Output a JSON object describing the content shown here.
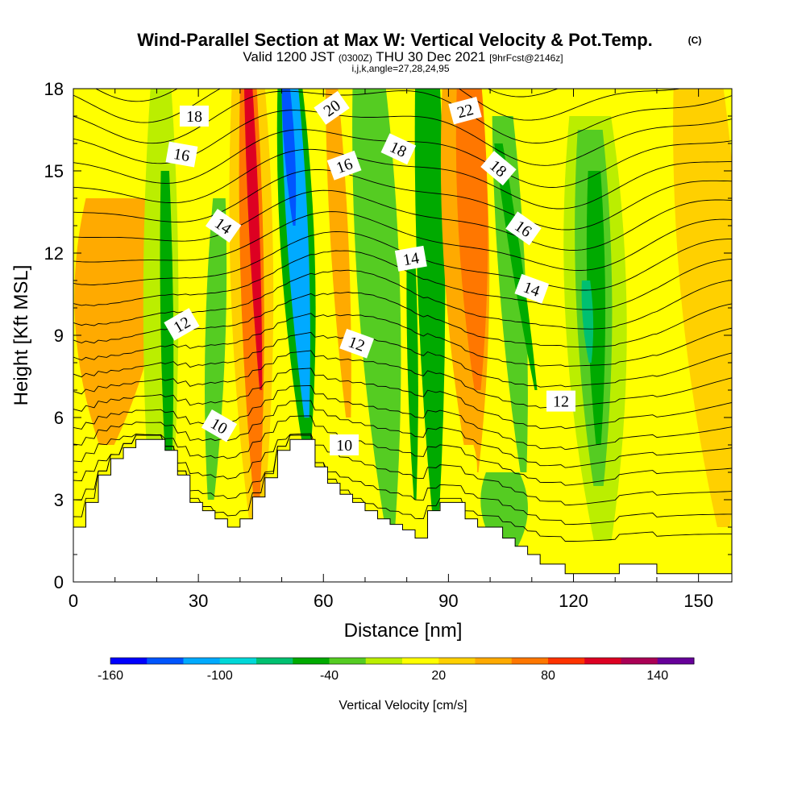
{
  "chart_data": {
    "type": "heatmap",
    "title": "Wind-Parallel Section at Max W: Vertical Velocity & Pot.Temp.",
    "title_mark": "(C)",
    "subtitle_parts": [
      "Valid 1200 JST",
      "(0300Z)",
      "THU 30 Dec 2021",
      "[9hrFcst@2146z]"
    ],
    "subtitle2": "i,j,k,angle=27,28,24,95",
    "xlabel": "Distance [nm]",
    "ylabel": "Height [Kft MSL]",
    "xlim": [
      0,
      158
    ],
    "ylim": [
      0,
      18
    ],
    "xticks": [
      0,
      30,
      60,
      90,
      120,
      150
    ],
    "yticks": [
      0,
      3,
      6,
      9,
      12,
      15,
      18
    ],
    "colorbar": {
      "label": "Vertical Velocity [cm/s]",
      "ticks": [
        -160,
        -100,
        -40,
        20,
        80,
        140
      ],
      "bounds": [
        -160,
        160
      ],
      "colors": [
        "#0000ff",
        "#0055ff",
        "#00aaff",
        "#00d8d8",
        "#00c070",
        "#00aa00",
        "#55cc22",
        "#bbee00",
        "#ffff00",
        "#ffd000",
        "#ffaa00",
        "#ff7700",
        "#ff3300",
        "#dd0022",
        "#aa0055",
        "#660099"
      ]
    },
    "velocity_bands": [
      {
        "x0": 8,
        "w0": 12,
        "x1": 12,
        "w1": 18,
        "y0": 5,
        "y1": 14,
        "value": 50
      },
      {
        "x0": 21,
        "w0": 9,
        "x1": 21,
        "w1": 5,
        "y0": 0,
        "y1": 18,
        "value": -20
      },
      {
        "x0": 23,
        "w0": 3,
        "x1": 22,
        "w1": 2,
        "y0": 3,
        "y1": 15,
        "value": -45
      },
      {
        "x0": 33,
        "w0": 5,
        "x1": 35,
        "w1": 3,
        "y0": 3,
        "y1": 14,
        "value": -35
      },
      {
        "x0": 44,
        "w0": 8,
        "x1": 42,
        "w1": 8,
        "y0": 1.5,
        "y1": 18,
        "value": 35
      },
      {
        "x0": 44,
        "w0": 5,
        "x1": 42,
        "w1": 4,
        "y0": 3,
        "y1": 18,
        "value": 75
      },
      {
        "x0": 45,
        "w0": 2,
        "x1": 42,
        "w1": 2,
        "y0": 7,
        "y1": 18,
        "value": 100
      },
      {
        "x0": 56,
        "w0": 7,
        "x1": 52,
        "w1": 6,
        "y0": 5,
        "y1": 18,
        "value": -60
      },
      {
        "x0": 56,
        "w0": 4,
        "x1": 52,
        "w1": 4,
        "y0": 6,
        "y1": 18,
        "value": -110
      },
      {
        "x0": 53,
        "w0": 2,
        "x1": 51,
        "w1": 2,
        "y0": 13,
        "y1": 18,
        "value": -140
      },
      {
        "x0": 66,
        "w0": 4,
        "x1": 62,
        "w1": 3,
        "y0": 6,
        "y1": 18,
        "value": 40
      },
      {
        "x0": 76,
        "w0": 8,
        "x1": 71,
        "w1": 8,
        "y0": 2,
        "y1": 18,
        "value": -35
      },
      {
        "x0": 87,
        "w0": 4,
        "x1": 85,
        "w1": 6,
        "y0": 2,
        "y1": 18,
        "value": -50
      },
      {
        "x0": 82,
        "w0": 2,
        "x1": 81,
        "w1": 2,
        "y0": 3,
        "y1": 12,
        "value": -45
      },
      {
        "x0": 96,
        "w0": 8,
        "x1": 93,
        "w1": 9,
        "y0": 4,
        "y1": 18,
        "value": 45
      },
      {
        "x0": 97,
        "w0": 5,
        "x1": 95,
        "w1": 6,
        "y0": 7,
        "y1": 18,
        "value": 75
      },
      {
        "x0": 108,
        "w0": 5,
        "x1": 103,
        "w1": 5,
        "y0": 4,
        "y1": 17,
        "value": -35
      },
      {
        "x0": 111,
        "w0": 2,
        "x1": 102,
        "w1": 2,
        "y0": 7,
        "y1": 16,
        "value": -45
      },
      {
        "x0": 127,
        "w0": 14,
        "x1": 124,
        "w1": 10,
        "y0": 1.5,
        "y1": 17,
        "value": -10
      },
      {
        "x0": 126,
        "w0": 8,
        "x1": 124,
        "w1": 6,
        "y0": 3.5,
        "y1": 16.5,
        "value": -35
      },
      {
        "x0": 126,
        "w0": 4,
        "x1": 125,
        "w1": 3,
        "y0": 5,
        "y1": 15,
        "value": -48
      },
      {
        "x0": 124,
        "w0": 2,
        "x1": 123,
        "w1": 2,
        "y0": 8,
        "y1": 11,
        "value": -70
      },
      {
        "x0": 156,
        "w0": 10,
        "x1": 150,
        "w1": 12,
        "y0": 2,
        "y1": 18,
        "value": 30
      },
      {
        "x0": 104,
        "w0": 10,
        "x1": 103,
        "w1": 8,
        "y0": 1,
        "y1": 4,
        "value": -30
      },
      {
        "x0": 93,
        "w0": 6,
        "x1": 93,
        "w1": 6,
        "y0": 2.5,
        "y1": 5,
        "value": 15
      }
    ],
    "terrain_kft": [
      {
        "x": 0,
        "h": 2.0
      },
      {
        "x": 3,
        "h": 2.9
      },
      {
        "x": 6,
        "h": 3.9
      },
      {
        "x": 9,
        "h": 4.5
      },
      {
        "x": 12,
        "h": 4.9
      },
      {
        "x": 15,
        "h": 5.2
      },
      {
        "x": 22,
        "h": 4.8
      },
      {
        "x": 25,
        "h": 3.9
      },
      {
        "x": 28,
        "h": 2.9
      },
      {
        "x": 31,
        "h": 2.6
      },
      {
        "x": 34,
        "h": 2.3
      },
      {
        "x": 37,
        "h": 2.0
      },
      {
        "x": 40,
        "h": 2.3
      },
      {
        "x": 43,
        "h": 3.1
      },
      {
        "x": 46,
        "h": 3.8
      },
      {
        "x": 49,
        "h": 4.8
      },
      {
        "x": 52,
        "h": 5.2
      },
      {
        "x": 58,
        "h": 4.2
      },
      {
        "x": 61,
        "h": 3.6
      },
      {
        "x": 64,
        "h": 3.2
      },
      {
        "x": 67,
        "h": 2.9
      },
      {
        "x": 70,
        "h": 2.6
      },
      {
        "x": 73,
        "h": 2.3
      },
      {
        "x": 76,
        "h": 2.1
      },
      {
        "x": 79,
        "h": 1.9
      },
      {
        "x": 82,
        "h": 1.6
      },
      {
        "x": 85,
        "h": 2.6
      },
      {
        "x": 88,
        "h": 2.9
      },
      {
        "x": 94,
        "h": 2.3
      },
      {
        "x": 97,
        "h": 2.0
      },
      {
        "x": 100,
        "h": 2.0
      },
      {
        "x": 103,
        "h": 1.6
      },
      {
        "x": 106,
        "h": 1.3
      },
      {
        "x": 109,
        "h": 1.0
      },
      {
        "x": 112,
        "h": 0.65
      },
      {
        "x": 118,
        "h": 0.3
      },
      {
        "x": 131,
        "h": 0.65
      },
      {
        "x": 140,
        "h": 0.3
      },
      {
        "x": 158,
        "h": 0.3
      }
    ],
    "theta_contours": [
      {
        "base": 1.5
      },
      {
        "base": 2.2
      },
      {
        "base": 3.0
      },
      {
        "base": 3.8
      },
      {
        "base": 4.5
      },
      {
        "base": 5.2
      },
      {
        "base": 6.0
      },
      {
        "base": 6.8
      },
      {
        "base": 7.6
      },
      {
        "base": 8.4
      },
      {
        "base": 9.2
      },
      {
        "base": 10.0
      },
      {
        "base": 10.8
      },
      {
        "base": 11.6
      },
      {
        "base": 12.4
      },
      {
        "base": 13.2
      },
      {
        "base": 14.0
      },
      {
        "base": 14.8
      },
      {
        "base": 15.6
      },
      {
        "base": 16.4
      },
      {
        "base": 17.2
      },
      {
        "base": 18.0
      },
      {
        "base": 18.8
      }
    ],
    "contour_labels": [
      {
        "text": "18",
        "x": 29,
        "y": 17.0,
        "angle": 0
      },
      {
        "text": "16",
        "x": 26,
        "y": 15.6,
        "angle": 10
      },
      {
        "text": "14",
        "x": 36,
        "y": 13.0,
        "angle": 35
      },
      {
        "text": "12",
        "x": 26,
        "y": 9.4,
        "angle": -30
      },
      {
        "text": "10",
        "x": 35,
        "y": 5.7,
        "angle": 30
      },
      {
        "text": "20",
        "x": 62,
        "y": 17.3,
        "angle": -35
      },
      {
        "text": "16",
        "x": 65,
        "y": 15.2,
        "angle": -20
      },
      {
        "text": "12",
        "x": 68,
        "y": 8.7,
        "angle": 20
      },
      {
        "text": "10",
        "x": 65,
        "y": 5.0,
        "angle": 0
      },
      {
        "text": "18",
        "x": 78,
        "y": 15.8,
        "angle": 25
      },
      {
        "text": "14",
        "x": 81,
        "y": 11.8,
        "angle": -10
      },
      {
        "text": "22",
        "x": 94,
        "y": 17.2,
        "angle": -15
      },
      {
        "text": "18",
        "x": 102,
        "y": 15.1,
        "angle": 40
      },
      {
        "text": "16",
        "x": 108,
        "y": 12.9,
        "angle": 35
      },
      {
        "text": "14",
        "x": 110,
        "y": 10.7,
        "angle": 20
      },
      {
        "text": "12",
        "x": 117,
        "y": 6.6,
        "angle": 0
      }
    ]
  }
}
